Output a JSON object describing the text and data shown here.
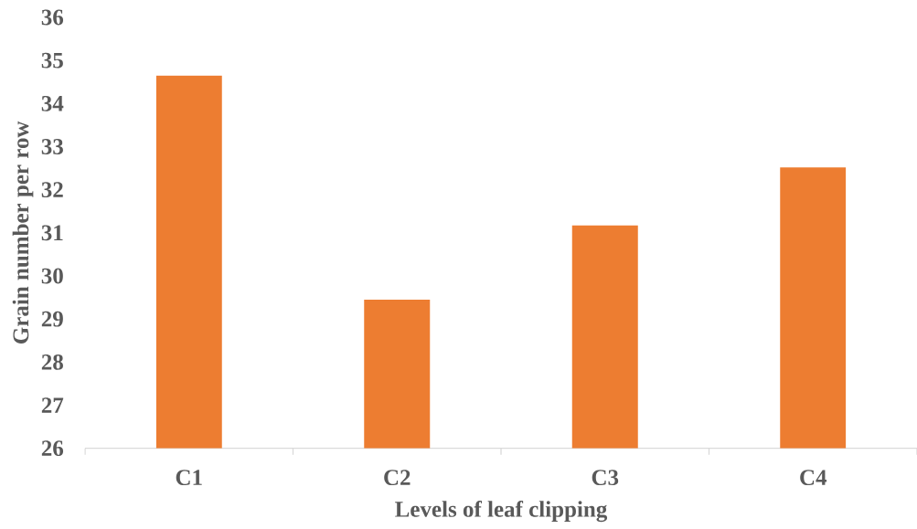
{
  "chart_data": {
    "type": "bar",
    "xlabel": "Levels of leaf clipping",
    "ylabel": "Grain number per row",
    "categories": [
      "C1",
      "C2",
      "C3",
      "C4"
    ],
    "values": [
      34.65,
      29.45,
      31.17,
      32.52
    ],
    "color": "#ed7d31",
    "ylim": [
      26,
      36
    ],
    "yticks": [
      26,
      27,
      28,
      29,
      30,
      31,
      32,
      33,
      34,
      35,
      36
    ]
  }
}
